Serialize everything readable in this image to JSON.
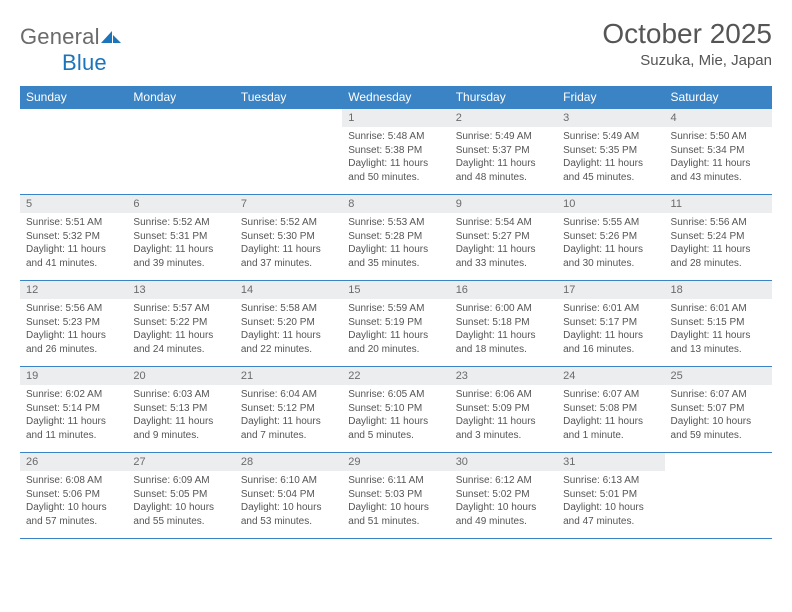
{
  "brand": {
    "text1": "General",
    "text2": "Blue"
  },
  "title": "October 2025",
  "location": "Suzuka, Mie, Japan",
  "colors": {
    "header_bg": "#3a83c4",
    "header_fg": "#ffffff",
    "daynum_bg": "#ebedef",
    "border": "#3a83c4",
    "text": "#555555",
    "logo_gray": "#6b6b6b",
    "logo_blue": "#1c74bb"
  },
  "weekdays": [
    "Sunday",
    "Monday",
    "Tuesday",
    "Wednesday",
    "Thursday",
    "Friday",
    "Saturday"
  ],
  "weeks": [
    [
      null,
      null,
      null,
      {
        "n": "1",
        "sr": "5:48 AM",
        "ss": "5:38 PM",
        "dl": "11 hours and 50 minutes."
      },
      {
        "n": "2",
        "sr": "5:49 AM",
        "ss": "5:37 PM",
        "dl": "11 hours and 48 minutes."
      },
      {
        "n": "3",
        "sr": "5:49 AM",
        "ss": "5:35 PM",
        "dl": "11 hours and 45 minutes."
      },
      {
        "n": "4",
        "sr": "5:50 AM",
        "ss": "5:34 PM",
        "dl": "11 hours and 43 minutes."
      }
    ],
    [
      {
        "n": "5",
        "sr": "5:51 AM",
        "ss": "5:32 PM",
        "dl": "11 hours and 41 minutes."
      },
      {
        "n": "6",
        "sr": "5:52 AM",
        "ss": "5:31 PM",
        "dl": "11 hours and 39 minutes."
      },
      {
        "n": "7",
        "sr": "5:52 AM",
        "ss": "5:30 PM",
        "dl": "11 hours and 37 minutes."
      },
      {
        "n": "8",
        "sr": "5:53 AM",
        "ss": "5:28 PM",
        "dl": "11 hours and 35 minutes."
      },
      {
        "n": "9",
        "sr": "5:54 AM",
        "ss": "5:27 PM",
        "dl": "11 hours and 33 minutes."
      },
      {
        "n": "10",
        "sr": "5:55 AM",
        "ss": "5:26 PM",
        "dl": "11 hours and 30 minutes."
      },
      {
        "n": "11",
        "sr": "5:56 AM",
        "ss": "5:24 PM",
        "dl": "11 hours and 28 minutes."
      }
    ],
    [
      {
        "n": "12",
        "sr": "5:56 AM",
        "ss": "5:23 PM",
        "dl": "11 hours and 26 minutes."
      },
      {
        "n": "13",
        "sr": "5:57 AM",
        "ss": "5:22 PM",
        "dl": "11 hours and 24 minutes."
      },
      {
        "n": "14",
        "sr": "5:58 AM",
        "ss": "5:20 PM",
        "dl": "11 hours and 22 minutes."
      },
      {
        "n": "15",
        "sr": "5:59 AM",
        "ss": "5:19 PM",
        "dl": "11 hours and 20 minutes."
      },
      {
        "n": "16",
        "sr": "6:00 AM",
        "ss": "5:18 PM",
        "dl": "11 hours and 18 minutes."
      },
      {
        "n": "17",
        "sr": "6:01 AM",
        "ss": "5:17 PM",
        "dl": "11 hours and 16 minutes."
      },
      {
        "n": "18",
        "sr": "6:01 AM",
        "ss": "5:15 PM",
        "dl": "11 hours and 13 minutes."
      }
    ],
    [
      {
        "n": "19",
        "sr": "6:02 AM",
        "ss": "5:14 PM",
        "dl": "11 hours and 11 minutes."
      },
      {
        "n": "20",
        "sr": "6:03 AM",
        "ss": "5:13 PM",
        "dl": "11 hours and 9 minutes."
      },
      {
        "n": "21",
        "sr": "6:04 AM",
        "ss": "5:12 PM",
        "dl": "11 hours and 7 minutes."
      },
      {
        "n": "22",
        "sr": "6:05 AM",
        "ss": "5:10 PM",
        "dl": "11 hours and 5 minutes."
      },
      {
        "n": "23",
        "sr": "6:06 AM",
        "ss": "5:09 PM",
        "dl": "11 hours and 3 minutes."
      },
      {
        "n": "24",
        "sr": "6:07 AM",
        "ss": "5:08 PM",
        "dl": "11 hours and 1 minute."
      },
      {
        "n": "25",
        "sr": "6:07 AM",
        "ss": "5:07 PM",
        "dl": "10 hours and 59 minutes."
      }
    ],
    [
      {
        "n": "26",
        "sr": "6:08 AM",
        "ss": "5:06 PM",
        "dl": "10 hours and 57 minutes."
      },
      {
        "n": "27",
        "sr": "6:09 AM",
        "ss": "5:05 PM",
        "dl": "10 hours and 55 minutes."
      },
      {
        "n": "28",
        "sr": "6:10 AM",
        "ss": "5:04 PM",
        "dl": "10 hours and 53 minutes."
      },
      {
        "n": "29",
        "sr": "6:11 AM",
        "ss": "5:03 PM",
        "dl": "10 hours and 51 minutes."
      },
      {
        "n": "30",
        "sr": "6:12 AM",
        "ss": "5:02 PM",
        "dl": "10 hours and 49 minutes."
      },
      {
        "n": "31",
        "sr": "6:13 AM",
        "ss": "5:01 PM",
        "dl": "10 hours and 47 minutes."
      },
      null
    ]
  ],
  "labels": {
    "sunrise": "Sunrise:",
    "sunset": "Sunset:",
    "daylight": "Daylight:"
  }
}
